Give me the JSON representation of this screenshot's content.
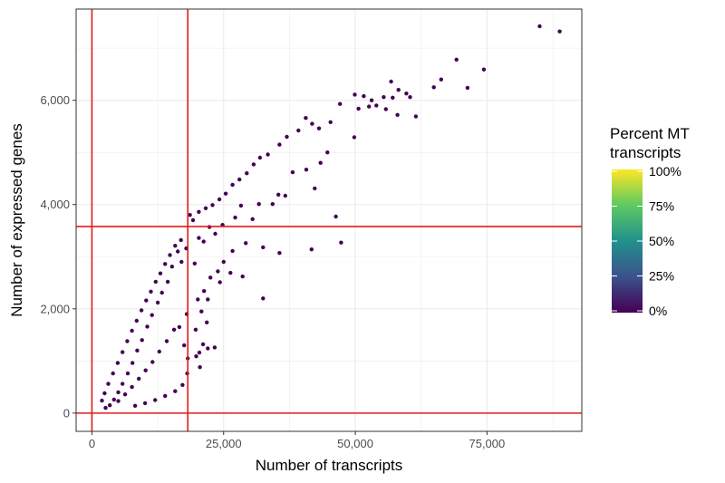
{
  "chart_data": {
    "type": "scatter",
    "title": "",
    "xlabel": "Number of transcripts",
    "ylabel": "Number of expressed genes",
    "xlim": [
      -3000,
      93000
    ],
    "ylim": [
      -350,
      7750
    ],
    "x_ticks": [
      0,
      25000,
      50000,
      75000
    ],
    "x_tick_labels": [
      "0",
      "25,000",
      "50,000",
      "75,000"
    ],
    "y_ticks": [
      0,
      2000,
      4000,
      6000
    ],
    "y_tick_labels": [
      "0",
      "2,000",
      "4,000",
      "6,000"
    ],
    "grid": true,
    "point_color": "#440154",
    "threshold_color": "#e41a1c",
    "thresholds": {
      "vertical": [
        0,
        18200
      ],
      "horizontal": [
        0,
        3580
      ]
    },
    "legend": {
      "title_lines": [
        "Percent MT",
        "transcripts"
      ],
      "placement": "right",
      "labels": [
        "100%",
        "75%",
        "50%",
        "25%",
        "0%"
      ],
      "colorscale": [
        "#440154",
        "#3b528b",
        "#21918c",
        "#5ec962",
        "#fde725"
      ]
    },
    "series": [
      {
        "points": [
          [
            85000,
            7420
          ],
          [
            88800,
            7320
          ],
          [
            69200,
            6780
          ],
          [
            74400,
            6590
          ],
          [
            71300,
            6240
          ],
          [
            66300,
            6400
          ],
          [
            64900,
            6250
          ],
          [
            56800,
            6360
          ],
          [
            58200,
            6200
          ],
          [
            59700,
            6130
          ],
          [
            60400,
            6060
          ],
          [
            57100,
            6050
          ],
          [
            55400,
            6060
          ],
          [
            53100,
            6000
          ],
          [
            51600,
            6080
          ],
          [
            49900,
            6110
          ],
          [
            52600,
            5880
          ],
          [
            50600,
            5840
          ],
          [
            54000,
            5900
          ],
          [
            55800,
            5830
          ],
          [
            58000,
            5720
          ],
          [
            61500,
            5690
          ],
          [
            47100,
            5930
          ],
          [
            49800,
            5290
          ],
          [
            45300,
            5580
          ],
          [
            43100,
            5460
          ],
          [
            40600,
            5660
          ],
          [
            41800,
            5550
          ],
          [
            39200,
            5420
          ],
          [
            37000,
            5300
          ],
          [
            35600,
            5150
          ],
          [
            33400,
            4960
          ],
          [
            31900,
            4900
          ],
          [
            30700,
            4770
          ],
          [
            29400,
            4600
          ],
          [
            28000,
            4480
          ],
          [
            26700,
            4380
          ],
          [
            25400,
            4210
          ],
          [
            24200,
            4100
          ],
          [
            22900,
            3990
          ],
          [
            21600,
            3930
          ],
          [
            20300,
            3860
          ],
          [
            19200,
            3700
          ],
          [
            18600,
            3800
          ],
          [
            44700,
            5000
          ],
          [
            43400,
            4800
          ],
          [
            42300,
            4310
          ],
          [
            40700,
            4670
          ],
          [
            38100,
            4620
          ],
          [
            36700,
            4170
          ],
          [
            35400,
            4190
          ],
          [
            34300,
            4010
          ],
          [
            31700,
            4010
          ],
          [
            30500,
            3720
          ],
          [
            28300,
            3980
          ],
          [
            27200,
            3750
          ],
          [
            24800,
            3610
          ],
          [
            23400,
            3440
          ],
          [
            22300,
            3570
          ],
          [
            21200,
            3290
          ],
          [
            20300,
            3360
          ],
          [
            46300,
            3770
          ],
          [
            47300,
            3270
          ],
          [
            41700,
            3140
          ],
          [
            35600,
            3070
          ],
          [
            32500,
            3180
          ],
          [
            29200,
            3260
          ],
          [
            26700,
            3110
          ],
          [
            25000,
            2900
          ],
          [
            23900,
            2720
          ],
          [
            22500,
            2600
          ],
          [
            21300,
            2340
          ],
          [
            20100,
            2180
          ],
          [
            19500,
            2870
          ],
          [
            32500,
            2200
          ],
          [
            28600,
            2620
          ],
          [
            26300,
            2690
          ],
          [
            24300,
            2510
          ],
          [
            22000,
            2180
          ],
          [
            20800,
            1950
          ],
          [
            21800,
            1740
          ],
          [
            19700,
            1600
          ],
          [
            20400,
            1160
          ],
          [
            19800,
            1090
          ],
          [
            20500,
            880
          ],
          [
            22000,
            1240
          ],
          [
            21100,
            1320
          ],
          [
            23300,
            1260
          ],
          [
            17900,
            3160
          ],
          [
            17000,
            2900
          ],
          [
            16300,
            3100
          ],
          [
            15200,
            2810
          ],
          [
            14400,
            2520
          ],
          [
            13300,
            2310
          ],
          [
            12500,
            2120
          ],
          [
            11400,
            1880
          ],
          [
            10500,
            1660
          ],
          [
            9500,
            1400
          ],
          [
            8600,
            1200
          ],
          [
            7700,
            960
          ],
          [
            6800,
            760
          ],
          [
            5800,
            560
          ],
          [
            5000,
            400
          ],
          [
            4200,
            260
          ],
          [
            3400,
            150
          ],
          [
            2600,
            100
          ],
          [
            16900,
            3320
          ],
          [
            15800,
            3210
          ],
          [
            14800,
            3030
          ],
          [
            13900,
            2860
          ],
          [
            13000,
            2680
          ],
          [
            12100,
            2520
          ],
          [
            11200,
            2330
          ],
          [
            10300,
            2160
          ],
          [
            9400,
            1970
          ],
          [
            8500,
            1770
          ],
          [
            7600,
            1580
          ],
          [
            6700,
            1380
          ],
          [
            5800,
            1170
          ],
          [
            4900,
            960
          ],
          [
            4000,
            760
          ],
          [
            3100,
            560
          ],
          [
            2400,
            380
          ],
          [
            1900,
            240
          ],
          [
            15600,
            1600
          ],
          [
            14200,
            1380
          ],
          [
            12800,
            1180
          ],
          [
            11500,
            980
          ],
          [
            10200,
            820
          ],
          [
            8900,
            660
          ],
          [
            7600,
            500
          ],
          [
            6300,
            360
          ],
          [
            5000,
            230
          ],
          [
            18000,
            1900
          ],
          [
            16600,
            1650
          ],
          [
            17500,
            1300
          ],
          [
            18200,
            1050
          ],
          [
            18100,
            760
          ],
          [
            17200,
            540
          ],
          [
            15800,
            420
          ],
          [
            13900,
            330
          ],
          [
            12000,
            250
          ],
          [
            10100,
            190
          ],
          [
            8200,
            140
          ]
        ]
      }
    ]
  }
}
